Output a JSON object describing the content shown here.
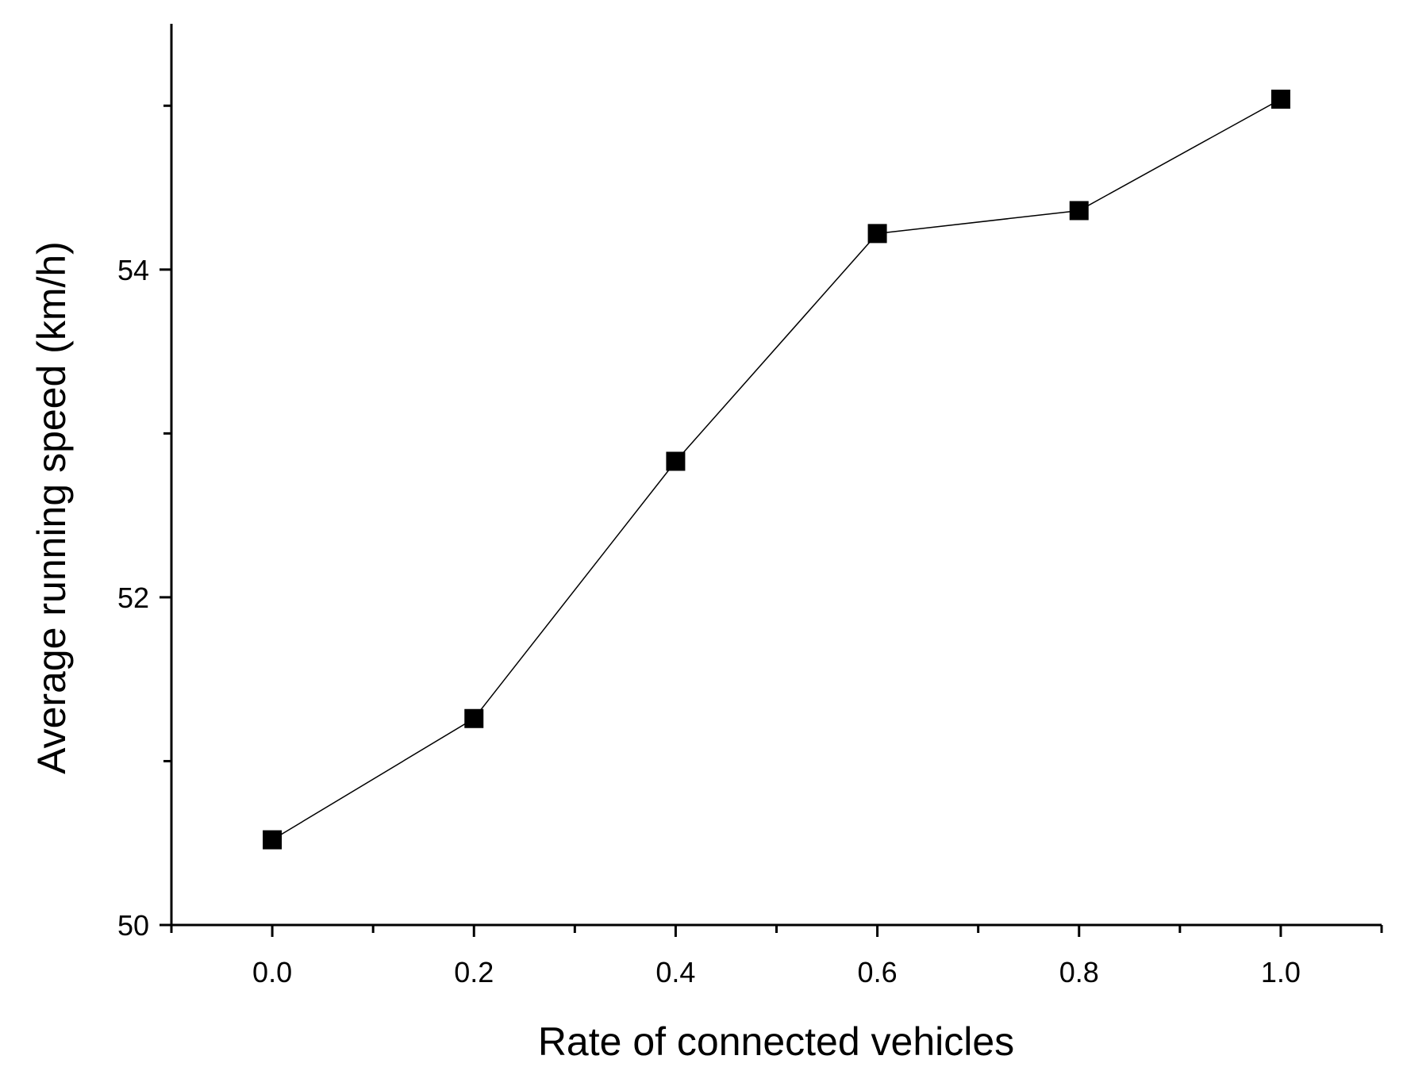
{
  "chart_data": {
    "type": "line",
    "title": "",
    "xlabel": "Rate of connected vehicles",
    "ylabel": "Average running speed (km/h)",
    "xlim": [
      -0.1,
      1.1
    ],
    "ylim": [
      50,
      55.5
    ],
    "x_ticks": [
      0.0,
      0.2,
      0.4,
      0.6,
      0.8,
      1.0
    ],
    "x_tick_labels": [
      "0.0",
      "0.2",
      "0.4",
      "0.6",
      "0.8",
      "1.0"
    ],
    "x_minor_ticks": [
      -0.1,
      0.1,
      0.3,
      0.5,
      0.7,
      0.9,
      1.1
    ],
    "y_ticks": [
      50,
      52,
      54
    ],
    "y_tick_labels": [
      "50",
      "52",
      "54"
    ],
    "y_minor_ticks": [
      51,
      53,
      55
    ],
    "grid": false,
    "legend": "none",
    "series": [
      {
        "marker": "square",
        "color": "#000000",
        "x": [
          0.0,
          0.2,
          0.4,
          0.6,
          0.8,
          1.0
        ],
        "y": [
          50.52,
          51.26,
          52.83,
          54.22,
          54.36,
          55.04
        ]
      }
    ]
  }
}
